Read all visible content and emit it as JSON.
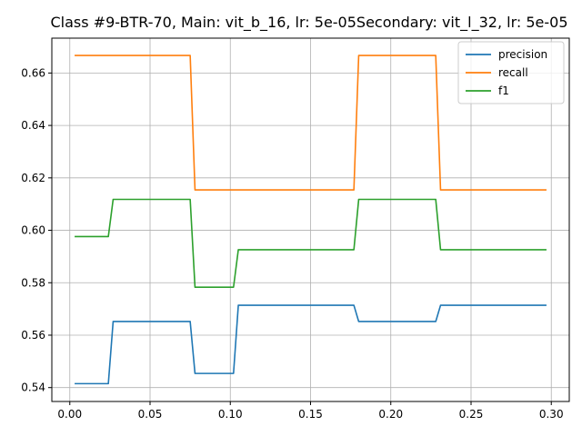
{
  "chart_data": {
    "type": "line",
    "title": "Class #9-BTR-70, Main: vit_b_16, lr: 5e-05Secondary: vit_l_32, lr: 5e-05",
    "xlabel": "",
    "ylabel": "",
    "xlim": [
      -0.0112,
      0.3112
    ],
    "ylim": [
      0.5347,
      0.6733
    ],
    "xticks": [
      0.0,
      0.05,
      0.1,
      0.15,
      0.2,
      0.25,
      0.3
    ],
    "xtick_labels": [
      "0.00",
      "0.05",
      "0.10",
      "0.15",
      "0.20",
      "0.25",
      "0.30"
    ],
    "yticks": [
      0.54,
      0.56,
      0.58,
      0.6,
      0.62,
      0.64,
      0.66
    ],
    "ytick_labels": [
      "0.54",
      "0.56",
      "0.58",
      "0.60",
      "0.62",
      "0.64",
      "0.66"
    ],
    "grid": true,
    "legend_position": "top-right",
    "series": [
      {
        "name": "precision",
        "color": "#1f77b4",
        "x": [
          0.003,
          0.024,
          0.027,
          0.075,
          0.078,
          0.102,
          0.105,
          0.177,
          0.18,
          0.228,
          0.231,
          0.297
        ],
        "y": [
          0.5415,
          0.5415,
          0.5652,
          0.5652,
          0.5454,
          0.5454,
          0.5714,
          0.5714,
          0.5652,
          0.5652,
          0.5714,
          0.5714
        ]
      },
      {
        "name": "recall",
        "color": "#ff7f0e",
        "x": [
          0.003,
          0.075,
          0.078,
          0.177,
          0.18,
          0.228,
          0.231,
          0.297
        ],
        "y": [
          0.6667,
          0.6667,
          0.6154,
          0.6154,
          0.6667,
          0.6667,
          0.6154,
          0.6154
        ]
      },
      {
        "name": "f1",
        "color": "#2ca02c",
        "x": [
          0.003,
          0.024,
          0.027,
          0.075,
          0.078,
          0.102,
          0.105,
          0.177,
          0.18,
          0.228,
          0.231,
          0.297
        ],
        "y": [
          0.5976,
          0.5976,
          0.6118,
          0.6118,
          0.5783,
          0.5783,
          0.5926,
          0.5926,
          0.6118,
          0.6118,
          0.5926,
          0.5926
        ]
      }
    ]
  }
}
